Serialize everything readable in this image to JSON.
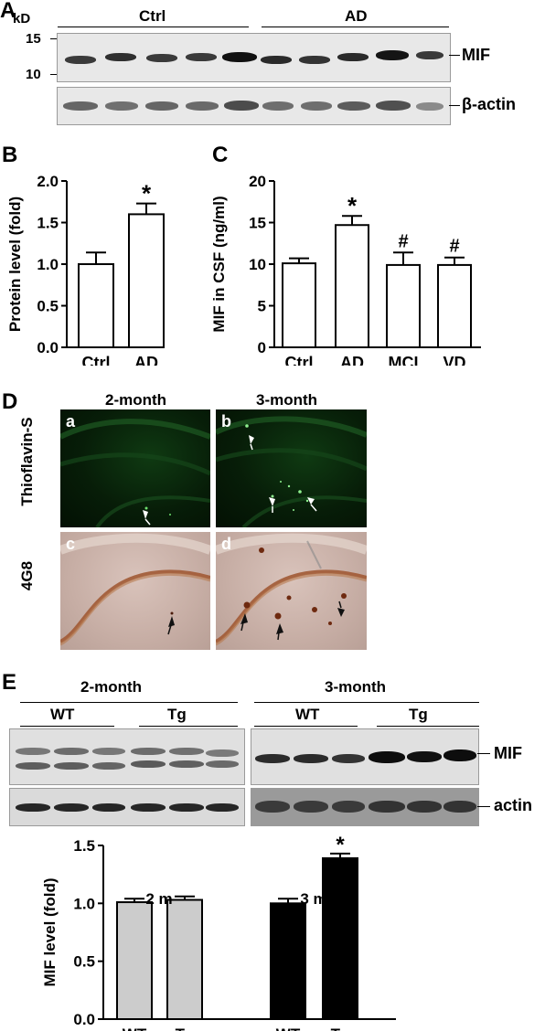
{
  "panel_A": {
    "label": "A",
    "kd": "kD",
    "marker_15": "15",
    "marker_10": "10",
    "group_ctrl": "Ctrl",
    "group_ad": "AD",
    "band_mif": "MIF",
    "band_actin": "β-actin"
  },
  "panel_B": {
    "label": "B"
  },
  "panel_C": {
    "label": "C"
  },
  "panel_D": {
    "label": "D",
    "col_2month": "2-month",
    "col_3month": "3-month",
    "row_thioflavin": "Thioflavin-S",
    "row_4g8": "4G8",
    "sub_a": "a",
    "sub_b": "b",
    "sub_c": "c",
    "sub_d": "d"
  },
  "panel_E": {
    "label": "E",
    "col_2month": "2-month",
    "col_3month": "3-month",
    "wt_left": "WT",
    "tg_left": "Tg",
    "wt_right": "WT",
    "tg_right": "Tg",
    "band_mif": "MIF",
    "band_actin": "actin"
  },
  "chart_data": [
    {
      "id": "B",
      "type": "bar",
      "categories": [
        "Ctrl",
        "AD"
      ],
      "values": [
        1.0,
        1.6
      ],
      "errors": [
        0.14,
        0.13
      ],
      "annotations": [
        "",
        "*"
      ],
      "ylabel": "Protein level (fold)",
      "ylim": [
        0,
        2.0
      ],
      "yticks": [
        "0.0",
        "0.5",
        "1.0",
        "1.5",
        "2.0"
      ],
      "bar_color": "#ffffff"
    },
    {
      "id": "C",
      "type": "bar",
      "categories": [
        "Ctrl",
        "AD",
        "MCI",
        "VD"
      ],
      "values": [
        10.1,
        14.7,
        9.9,
        9.9
      ],
      "errors": [
        0.6,
        1.1,
        1.5,
        0.9
      ],
      "annotations": [
        "",
        "*",
        "#",
        "#"
      ],
      "ylabel": "MIF in CSF (ng/ml)",
      "ylim": [
        0,
        20
      ],
      "yticks": [
        "0",
        "5",
        "10",
        "15",
        "20"
      ],
      "bar_color": "#ffffff"
    },
    {
      "id": "E",
      "type": "bar",
      "categories": [
        "WT",
        "Tg",
        "WT",
        "Tg"
      ],
      "values": [
        1.01,
        1.03,
        1.0,
        1.39
      ],
      "errors": [
        0.03,
        0.03,
        0.04,
        0.04
      ],
      "annotations": [
        "",
        "",
        "",
        "*"
      ],
      "group_labels": [
        "2 m",
        "3 m"
      ],
      "bar_colors": [
        "#cccccc",
        "#cccccc",
        "#000000",
        "#000000"
      ],
      "ylabel": "MIF level (fold)",
      "ylim": [
        0,
        1.5
      ],
      "yticks": [
        "0.0",
        "0.5",
        "1.0",
        "1.5"
      ]
    }
  ]
}
